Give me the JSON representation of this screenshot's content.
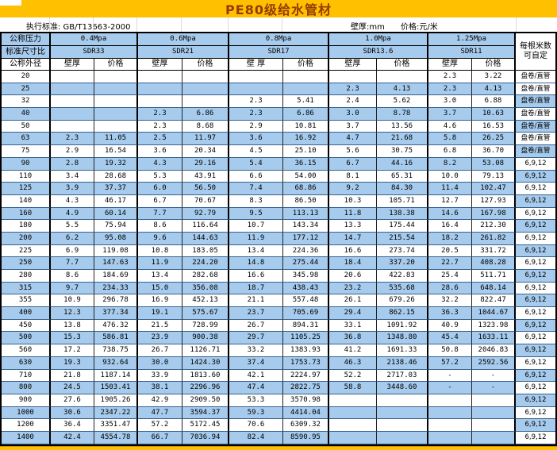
{
  "title": "PE80级给水管材",
  "info": {
    "standard": "执行标准: GB/T13663-2000",
    "wall_unit": "壁厚:mm",
    "price_unit": "价格:元/米"
  },
  "header": {
    "pressure_label": "公称压力",
    "sdr_label": "标准尺寸比",
    "diameter_label": "公称外径",
    "meters_label": "每根米数可自定",
    "pressures": [
      "0.4Mpa",
      "0.6Mpa",
      "0.8Mpa",
      "1.0Mpa",
      "1.25Mpa"
    ],
    "sdrs": [
      "SDR33",
      "SDR21",
      "SDR17",
      "SDR13.6",
      "SDR11"
    ],
    "wall_labels": [
      "壁厚",
      "壁厚",
      "壁 厚",
      "壁厚",
      "壁厚"
    ],
    "price_label": "价格"
  },
  "colors": {
    "title_bg": "#ffc000",
    "title_text": "#963b00",
    "stripe_blue": "#a7cbed",
    "footer_bg": "#ffc000",
    "row_line": "#35608e"
  },
  "rows": [
    {
      "dn": "20",
      "values": [
        "",
        "",
        "",
        "",
        "",
        "",
        "",
        "",
        "2.3",
        "3.22"
      ],
      "meters": "盘卷/直管"
    },
    {
      "dn": "25",
      "values": [
        "",
        "",
        "",
        "",
        "",
        "",
        "2.3",
        "4.13",
        "2.3",
        "4.13"
      ],
      "meters": "盘卷/直管"
    },
    {
      "dn": "32",
      "values": [
        "",
        "",
        "",
        "",
        "2.3",
        "5.41",
        "2.4",
        "5.62",
        "3.0",
        "6.88"
      ],
      "meters": "盘卷/直管"
    },
    {
      "dn": "40",
      "values": [
        "",
        "",
        "2.3",
        "6.86",
        "2.3",
        "6.86",
        "3.0",
        "8.78",
        "3.7",
        "10.63"
      ],
      "meters": "盘卷/直管"
    },
    {
      "dn": "50",
      "values": [
        "",
        "",
        "2.3",
        "8.68",
        "2.9",
        "10.81",
        "3.7",
        "13.56",
        "4.6",
        "16.53"
      ],
      "meters": "盘卷/直管"
    },
    {
      "dn": "63",
      "values": [
        "2.3",
        "11.05",
        "2.5",
        "11.97",
        "3.6",
        "16.92",
        "4.7",
        "21.68",
        "5.8",
        "26.25"
      ],
      "meters": "盘卷/直管"
    },
    {
      "dn": "75",
      "values": [
        "2.9",
        "16.54",
        "3.6",
        "20.34",
        "4.5",
        "25.10",
        "5.6",
        "30.75",
        "6.8",
        "36.70"
      ],
      "meters": "盘卷/直管"
    },
    {
      "dn": "90",
      "values": [
        "2.8",
        "19.32",
        "4.3",
        "29.16",
        "5.4",
        "36.15",
        "6.7",
        "44.16",
        "8.2",
        "53.08"
      ],
      "meters": "6,9,12"
    },
    {
      "dn": "110",
      "values": [
        "3.4",
        "28.68",
        "5.3",
        "43.91",
        "6.6",
        "54.00",
        "8.1",
        "65.31",
        "10.0",
        "79.13"
      ],
      "meters": "6,9,12"
    },
    {
      "dn": "125",
      "values": [
        "3.9",
        "37.37",
        "6.0",
        "56.50",
        "7.4",
        "68.86",
        "9.2",
        "84.30",
        "11.4",
        "102.47"
      ],
      "meters": "6,9,12"
    },
    {
      "dn": "140",
      "values": [
        "4.3",
        "46.17",
        "6.7",
        "70.67",
        "8.3",
        "86.50",
        "10.3",
        "105.71",
        "12.7",
        "127.93"
      ],
      "meters": "6,9,12"
    },
    {
      "dn": "160",
      "values": [
        "4.9",
        "60.14",
        "7.7",
        "92.79",
        "9.5",
        "113.13",
        "11.8",
        "138.38",
        "14.6",
        "167.98"
      ],
      "meters": "6,9,12"
    },
    {
      "dn": "180",
      "values": [
        "5.5",
        "75.94",
        "8.6",
        "116.64",
        "10.7",
        "143.34",
        "13.3",
        "175.44",
        "16.4",
        "212.30"
      ],
      "meters": "6,9,12"
    },
    {
      "dn": "200",
      "values": [
        "6.2",
        "95.08",
        "9.6",
        "144.63",
        "11.9",
        "177.12",
        "14.7",
        "215.54",
        "18.2",
        "261.82"
      ],
      "meters": "6,9,12"
    },
    {
      "dn": "225",
      "values": [
        "6.9",
        "119.08",
        "10.8",
        "183.05",
        "13.4",
        "224.36",
        "16.6",
        "273.74",
        "20.5",
        "331.72"
      ],
      "meters": "6,9,12"
    },
    {
      "dn": "250",
      "values": [
        "7.7",
        "147.63",
        "11.9",
        "224.20",
        "14.8",
        "275.44",
        "18.4",
        "337.20",
        "22.7",
        "408.28"
      ],
      "meters": "6,9,12"
    },
    {
      "dn": "280",
      "values": [
        "8.6",
        "184.69",
        "13.4",
        "282.68",
        "16.6",
        "345.98",
        "20.6",
        "422.83",
        "25.4",
        "511.71"
      ],
      "meters": "6,9,12"
    },
    {
      "dn": "315",
      "values": [
        "9.7",
        "234.33",
        "15.0",
        "356.08",
        "18.7",
        "438.43",
        "23.2",
        "535.68",
        "28.6",
        "648.14"
      ],
      "meters": "6,9,12"
    },
    {
      "dn": "355",
      "values": [
        "10.9",
        "296.78",
        "16.9",
        "452.13",
        "21.1",
        "557.48",
        "26.1",
        "679.26",
        "32.2",
        "822.47"
      ],
      "meters": "6,9,12"
    },
    {
      "dn": "400",
      "values": [
        "12.3",
        "377.34",
        "19.1",
        "575.67",
        "23.7",
        "705.69",
        "29.4",
        "862.15",
        "36.3",
        "1044.67"
      ],
      "meters": "6,9,12"
    },
    {
      "dn": "450",
      "values": [
        "13.8",
        "476.32",
        "21.5",
        "728.99",
        "26.7",
        "894.31",
        "33.1",
        "1091.92",
        "40.9",
        "1323.98"
      ],
      "meters": "6,9,12"
    },
    {
      "dn": "500",
      "values": [
        "15.3",
        "586.81",
        "23.9",
        "900.38",
        "29.7",
        "1105.25",
        "36.8",
        "1348.80",
        "45.4",
        "1633.11"
      ],
      "meters": "6,9,12"
    },
    {
      "dn": "560",
      "values": [
        "17.2",
        "738.75",
        "26.7",
        "1126.71",
        "33.2",
        "1383.93",
        "41.2",
        "1691.33",
        "50.8",
        "2046.83"
      ],
      "meters": "6,9,12"
    },
    {
      "dn": "630",
      "values": [
        "19.3",
        "932.64",
        "30.0",
        "1424.30",
        "37.4",
        "1753.73",
        "46.3",
        "2138.46",
        "57.2",
        "2592.56"
      ],
      "meters": "6,9,12"
    },
    {
      "dn": "710",
      "values": [
        "21.8",
        "1187.14",
        "33.9",
        "1813.60",
        "42.1",
        "2224.97",
        "52.2",
        "2717.03",
        "-",
        "-"
      ],
      "meters": "6,9,12"
    },
    {
      "dn": "800",
      "values": [
        "24.5",
        "1503.41",
        "38.1",
        "2296.96",
        "47.4",
        "2822.75",
        "58.8",
        "3448.60",
        "-",
        "-"
      ],
      "meters": "6,9,12"
    },
    {
      "dn": "900",
      "values": [
        "27.6",
        "1905.26",
        "42.9",
        "2909.50",
        "53.3",
        "3570.98",
        "",
        "",
        "",
        ""
      ],
      "meters": "6,9,12"
    },
    {
      "dn": "1000",
      "values": [
        "30.6",
        "2347.22",
        "47.7",
        "3594.37",
        "59.3",
        "4414.04",
        "",
        "",
        "",
        ""
      ],
      "meters": "6,9,12"
    },
    {
      "dn": "1200",
      "values": [
        "36.4",
        "3351.47",
        "57.2",
        "5172.45",
        "70.6",
        "6309.32",
        "",
        "",
        "",
        ""
      ],
      "meters": "6,9,12"
    },
    {
      "dn": "1400",
      "values": [
        "42.4",
        "4554.78",
        "66.7",
        "7036.94",
        "82.4",
        "8590.95",
        "",
        "",
        "",
        ""
      ],
      "meters": "6,9,12"
    }
  ]
}
